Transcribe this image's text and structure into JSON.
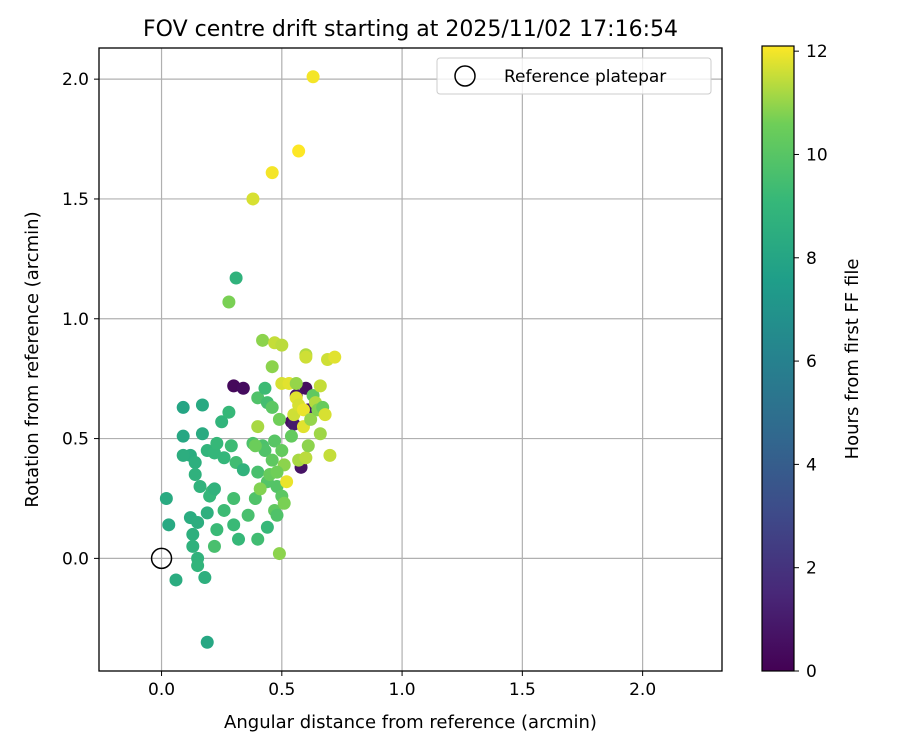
{
  "chart_data": {
    "type": "scatter",
    "title": "FOV centre drift starting at 2025/11/02 17:16:54",
    "xlabel": "Angular distance from reference (arcmin)",
    "ylabel": "Rotation from reference (arcmin)",
    "xlim": [
      -0.26,
      2.33
    ],
    "ylim": [
      -0.47,
      2.13
    ],
    "x_ticks": [
      0.0,
      0.5,
      1.0,
      1.5,
      2.0
    ],
    "x_tick_labels": [
      "0.0",
      "0.5",
      "1.0",
      "1.5",
      "2.0"
    ],
    "y_ticks": [
      0.0,
      0.5,
      1.0,
      1.5,
      2.0
    ],
    "y_tick_labels": [
      "0.0",
      "0.5",
      "1.0",
      "1.5",
      "2.0"
    ],
    "grid": true,
    "colormap": "viridis",
    "colorbar": {
      "label": "Hours from first FF file",
      "range": [
        0,
        12.1
      ],
      "ticks": [
        0,
        2,
        4,
        6,
        8,
        10,
        12
      ],
      "tick_labels": [
        "0",
        "2",
        "4",
        "6",
        "8",
        "10",
        "12"
      ]
    },
    "legend": {
      "position": "top-right",
      "entries": [
        "Reference platepar"
      ]
    },
    "reference_point": {
      "x": 0.0,
      "y": 0.0
    },
    "points": [
      [
        0.3,
        0.72,
        0.3
      ],
      [
        0.34,
        0.71,
        0.4
      ],
      [
        0.6,
        0.71,
        0.5
      ],
      [
        0.54,
        0.57,
        0.6
      ],
      [
        0.58,
        0.38,
        0.7
      ],
      [
        0.56,
        0.68,
        0.8
      ],
      [
        0.61,
        0.62,
        0.9
      ],
      [
        0.55,
        0.56,
        1.0
      ],
      [
        0.09,
        0.63,
        8.0
      ],
      [
        0.09,
        0.51,
        8.1
      ],
      [
        0.17,
        0.64,
        8.2
      ],
      [
        0.17,
        0.52,
        8.3
      ],
      [
        0.12,
        0.43,
        8.4
      ],
      [
        0.09,
        0.43,
        8.5
      ],
      [
        0.14,
        0.4,
        8.6
      ],
      [
        0.14,
        0.35,
        8.7
      ],
      [
        0.16,
        0.3,
        8.8
      ],
      [
        0.19,
        0.45,
        8.9
      ],
      [
        0.22,
        0.44,
        9.0
      ],
      [
        0.23,
        0.48,
        9.1
      ],
      [
        0.21,
        0.28,
        9.2
      ],
      [
        0.2,
        0.26,
        9.0
      ],
      [
        0.22,
        0.29,
        8.8
      ],
      [
        0.19,
        0.19,
        8.6
      ],
      [
        0.02,
        0.25,
        8.3
      ],
      [
        0.03,
        0.14,
        8.2
      ],
      [
        0.12,
        0.17,
        8.4
      ],
      [
        0.15,
        0.15,
        8.5
      ],
      [
        0.13,
        0.1,
        8.6
      ],
      [
        0.13,
        0.05,
        8.7
      ],
      [
        0.15,
        0.0,
        8.8
      ],
      [
        0.15,
        -0.03,
        8.9
      ],
      [
        0.06,
        -0.09,
        8.4
      ],
      [
        0.18,
        -0.08,
        8.6
      ],
      [
        0.19,
        -0.35,
        8.1
      ],
      [
        0.23,
        0.12,
        9.2
      ],
      [
        0.22,
        0.05,
        9.6
      ],
      [
        0.26,
        0.2,
        9.3
      ],
      [
        0.26,
        0.42,
        9.0
      ],
      [
        0.25,
        0.57,
        8.9
      ],
      [
        0.28,
        0.61,
        9.1
      ],
      [
        0.29,
        0.47,
        9.3
      ],
      [
        0.31,
        0.4,
        9.4
      ],
      [
        0.3,
        0.25,
        9.5
      ],
      [
        0.3,
        0.14,
        9.2
      ],
      [
        0.32,
        0.08,
        9.1
      ],
      [
        0.34,
        0.37,
        8.8
      ],
      [
        0.31,
        1.17,
        8.8
      ],
      [
        0.28,
        1.07,
        10.7
      ],
      [
        0.36,
        0.18,
        9.6
      ],
      [
        0.38,
        0.48,
        9.7
      ],
      [
        0.39,
        0.25,
        9.8
      ],
      [
        0.4,
        0.08,
        9.4
      ],
      [
        0.4,
        0.36,
        9.6
      ],
      [
        0.4,
        0.67,
        9.8
      ],
      [
        0.43,
        0.71,
        9.3
      ],
      [
        0.44,
        0.65,
        9.5
      ],
      [
        0.42,
        0.47,
        9.7
      ],
      [
        0.43,
        0.45,
        9.8
      ],
      [
        0.44,
        0.32,
        9.9
      ],
      [
        0.44,
        0.13,
        9.1
      ],
      [
        0.46,
        0.63,
        10.1
      ],
      [
        0.46,
        0.41,
        10.2
      ],
      [
        0.47,
        0.49,
        10.0
      ],
      [
        0.47,
        0.2,
        10.2
      ],
      [
        0.48,
        0.18,
        9.8
      ],
      [
        0.49,
        0.02,
        10.9
      ],
      [
        0.48,
        0.3,
        9.9
      ],
      [
        0.5,
        0.26,
        10.1
      ],
      [
        0.5,
        0.45,
        10.3
      ],
      [
        0.51,
        0.23,
        10.7
      ],
      [
        0.51,
        0.39,
        10.9
      ],
      [
        0.45,
        0.35,
        10.4
      ],
      [
        0.48,
        0.36,
        10.6
      ],
      [
        0.41,
        0.29,
        10.8
      ],
      [
        0.4,
        0.55,
        11.2
      ],
      [
        0.42,
        0.91,
        10.9
      ],
      [
        0.46,
        0.8,
        10.9
      ],
      [
        0.47,
        0.9,
        11.5
      ],
      [
        0.5,
        0.89,
        11.4
      ],
      [
        0.5,
        0.73,
        11.7
      ],
      [
        0.53,
        0.73,
        11.8
      ],
      [
        0.52,
        0.32,
        11.9
      ],
      [
        0.55,
        0.6,
        11.6
      ],
      [
        0.56,
        0.67,
        11.8
      ],
      [
        0.57,
        0.64,
        11.7
      ],
      [
        0.57,
        0.41,
        11.2
      ],
      [
        0.59,
        0.62,
        11.9
      ],
      [
        0.59,
        0.55,
        11.8
      ],
      [
        0.6,
        0.42,
        11.4
      ],
      [
        0.6,
        0.85,
        11.3
      ],
      [
        0.6,
        0.84,
        11.6
      ],
      [
        0.61,
        0.47,
        10.9
      ],
      [
        0.62,
        0.58,
        11.0
      ],
      [
        0.63,
        0.68,
        10.2
      ],
      [
        0.64,
        0.65,
        11.3
      ],
      [
        0.65,
        0.62,
        10.8
      ],
      [
        0.66,
        0.52,
        11.1
      ],
      [
        0.66,
        0.72,
        11.5
      ],
      [
        0.67,
        0.63,
        10.4
      ],
      [
        0.68,
        0.6,
        11.7
      ],
      [
        0.69,
        0.83,
        11.6
      ],
      [
        0.7,
        0.43,
        11.5
      ],
      [
        0.72,
        0.84,
        11.8
      ],
      [
        0.56,
        0.73,
        11.0
      ],
      [
        0.54,
        0.51,
        10.3
      ],
      [
        0.49,
        0.58,
        10.6
      ],
      [
        0.39,
        0.47,
        10.5
      ],
      [
        0.38,
        1.5,
        11.7
      ],
      [
        0.46,
        1.61,
        12.0
      ],
      [
        0.57,
        1.7,
        12.1
      ],
      [
        0.63,
        2.01,
        12.0
      ]
    ]
  }
}
